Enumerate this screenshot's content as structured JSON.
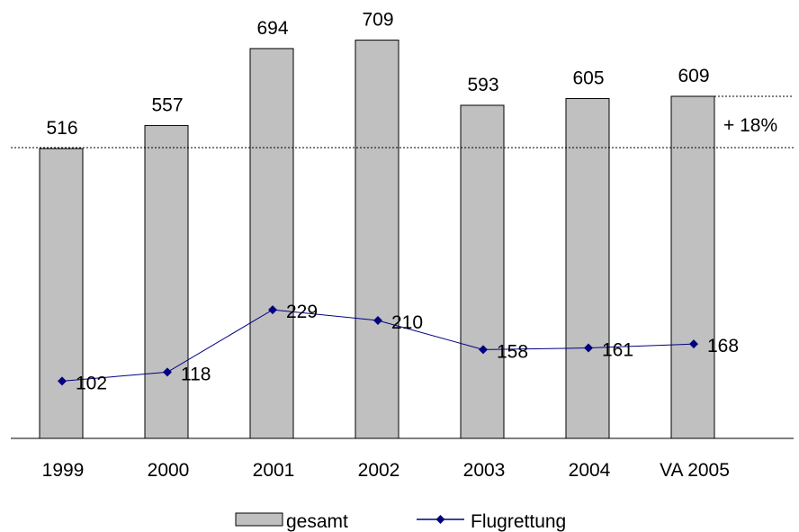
{
  "chart_data": {
    "type": "bar",
    "categories": [
      "1999",
      "2000",
      "2001",
      "2002",
      "2003",
      "2004",
      "VA 2005"
    ],
    "series": [
      {
        "name": "gesamt",
        "kind": "bar",
        "values": [
          516,
          557,
          694,
          709,
          593,
          605,
          609
        ],
        "color": "#c0c0c0"
      },
      {
        "name": "Flugrettung",
        "kind": "line",
        "values": [
          102,
          118,
          229,
          210,
          158,
          161,
          168
        ],
        "color": "#000080",
        "marker": "diamond"
      }
    ],
    "ylim": [
      0,
      730
    ],
    "grid": false,
    "legend": "bottom",
    "annotation": "+ 18%"
  }
}
